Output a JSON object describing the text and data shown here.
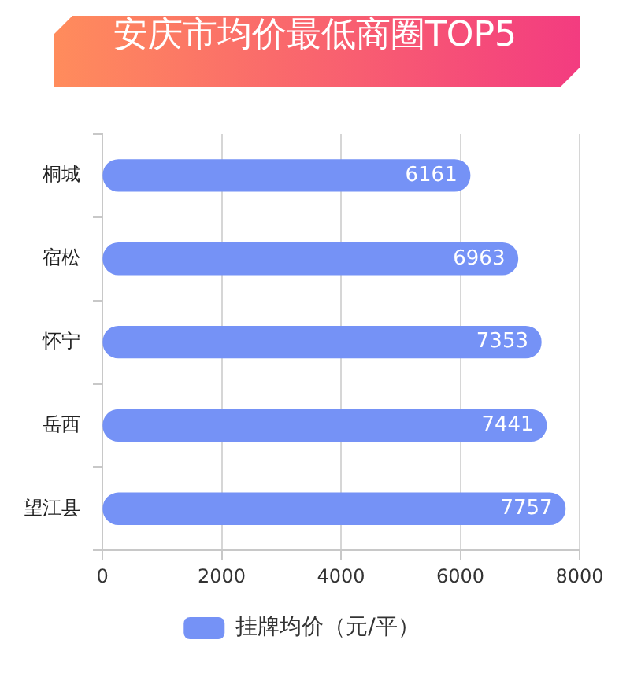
{
  "chart_data": {
    "type": "bar",
    "title": "安庆市均价最低商圈TOP5",
    "orientation": "horizontal",
    "categories": [
      "桐城",
      "宿松",
      "怀宁",
      "岳西",
      "望江县"
    ],
    "series": [
      {
        "name": "挂牌均价（元/平）",
        "color": "#7592f6",
        "values": [
          6161,
          6963,
          7353,
          7441,
          7757
        ]
      }
    ],
    "xlim": [
      0,
      8000
    ],
    "xticks": [
      0,
      2000,
      4000,
      6000,
      8000
    ],
    "grid": "x",
    "legend": "bottom",
    "data_labels": true
  }
}
